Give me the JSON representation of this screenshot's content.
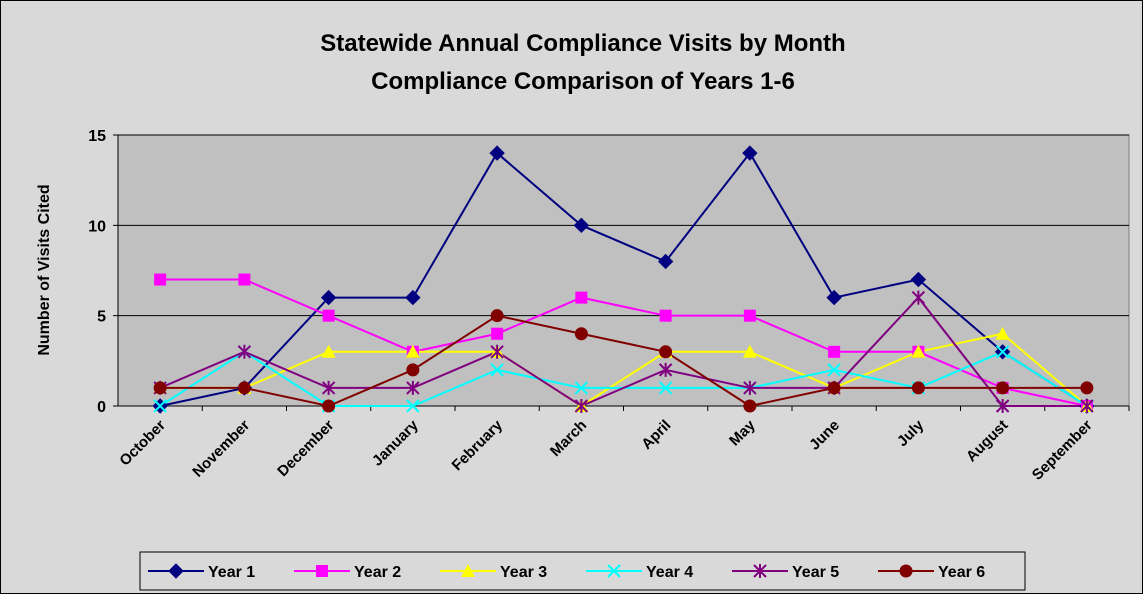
{
  "chart_data": {
    "type": "line",
    "title": "Statewide Annual Compliance Visits by Month",
    "subtitle": "Compliance Comparison of Years 1-6",
    "y_label": "Number of Visits Cited",
    "categories": [
      "October",
      "November",
      "December",
      "January",
      "February",
      "March",
      "April",
      "May",
      "June",
      "July",
      "August",
      "September"
    ],
    "series": [
      {
        "name": "Year 1",
        "color": "#000080",
        "marker": "diamond",
        "values": [
          0,
          1,
          6,
          6,
          14,
          10,
          8,
          14,
          6,
          7,
          3,
          0
        ]
      },
      {
        "name": "Year 2",
        "color": "#ff00ff",
        "marker": "square",
        "values": [
          7,
          7,
          5,
          3,
          4,
          6,
          5,
          5,
          3,
          3,
          1,
          0
        ]
      },
      {
        "name": "Year 3",
        "color": "#ffff00",
        "marker": "triangle",
        "values": [
          1,
          1,
          3,
          3,
          3,
          0,
          3,
          3,
          1,
          3,
          4,
          0
        ]
      },
      {
        "name": "Year 4",
        "color": "#00ffff",
        "marker": "x",
        "values": [
          0,
          3,
          0,
          0,
          2,
          1,
          1,
          1,
          2,
          1,
          3,
          0
        ]
      },
      {
        "name": "Year 5",
        "color": "#800080",
        "marker": "star",
        "values": [
          1,
          3,
          1,
          1,
          3,
          0,
          2,
          1,
          1,
          6,
          0,
          0
        ]
      },
      {
        "name": "Year 6",
        "color": "#800000",
        "marker": "circle",
        "values": [
          1,
          1,
          0,
          2,
          5,
          4,
          3,
          0,
          1,
          1,
          1,
          1
        ]
      }
    ],
    "ylim": [
      0,
      15
    ],
    "yticks": [
      0,
      5,
      10,
      15
    ],
    "grid": true,
    "legend": "bottom"
  }
}
